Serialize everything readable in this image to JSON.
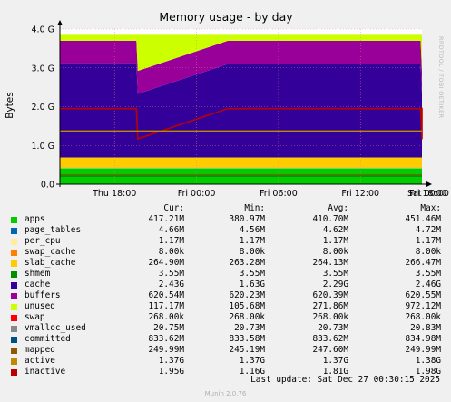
{
  "chart_data": {
    "type": "area",
    "title": "Memory usage - by day",
    "ylabel": "Bytes",
    "side_label": "RRDTOOL / TOBI OETIKER",
    "ylim": [
      0,
      4.0
    ],
    "y_unit": "GB",
    "y_ticks": [
      {
        "value": 0,
        "label": "0.0"
      },
      {
        "value": 1,
        "label": "1.0 G"
      },
      {
        "value": 2,
        "label": "2.0 G"
      },
      {
        "value": 3,
        "label": "3.0 G"
      },
      {
        "value": 4,
        "label": "4.0 G"
      }
    ],
    "x_range": [
      "Dec 26 14:00",
      "Dec 27 00:30"
    ],
    "x_range_hours": [
      0,
      26.5
    ],
    "x_ticks": [
      {
        "hour": 4,
        "label": "Thu 18:00"
      },
      {
        "hour": 10,
        "label": "Fri 00:00"
      },
      {
        "hour": 16,
        "label": "Fri 06:00"
      },
      {
        "hour": 22,
        "label": "Fri 12:00"
      },
      {
        "hour": 28,
        "label": "Fri 18:00"
      },
      {
        "hour": 34,
        "label": "Sat 00:00"
      }
    ],
    "grid": true,
    "columns": [
      "Cur:",
      "Min:",
      "Avg:",
      "Max:"
    ],
    "series": [
      {
        "name": "apps",
        "color": "#00cc00",
        "cur": "417.21M",
        "min": "380.97M",
        "avg": "410.70M",
        "max": "451.46M"
      },
      {
        "name": "page_tables",
        "color": "#0066b3",
        "cur": "4.66M",
        "min": "4.56M",
        "avg": "4.62M",
        "max": "4.72M"
      },
      {
        "name": "per_cpu",
        "color": "#ffee99",
        "cur": "1.17M",
        "min": "1.17M",
        "avg": "1.17M",
        "max": "1.17M"
      },
      {
        "name": "swap_cache",
        "color": "#ff8000",
        "cur": "8.00k",
        "min": "8.00k",
        "avg": "8.00k",
        "max": "8.00k"
      },
      {
        "name": "slab_cache",
        "color": "#ffcc00",
        "cur": "264.90M",
        "min": "263.28M",
        "avg": "264.13M",
        "max": "266.47M"
      },
      {
        "name": "shmem",
        "color": "#008f00",
        "cur": "3.55M",
        "min": "3.55M",
        "avg": "3.55M",
        "max": "3.55M"
      },
      {
        "name": "cache",
        "color": "#330099",
        "cur": "2.43G",
        "min": "1.63G",
        "avg": "2.29G",
        "max": "2.46G"
      },
      {
        "name": "buffers",
        "color": "#990099",
        "cur": "620.54M",
        "min": "620.23M",
        "avg": "620.39M",
        "max": "620.55M"
      },
      {
        "name": "unused",
        "color": "#ccff00",
        "cur": "117.17M",
        "min": "105.68M",
        "avg": "271.86M",
        "max": "972.12M"
      },
      {
        "name": "swap",
        "color": "#ff0000",
        "cur": "268.00k",
        "min": "268.00k",
        "avg": "268.00k",
        "max": "268.00k"
      },
      {
        "name": "vmalloc_used",
        "color": "#888888",
        "cur": "20.75M",
        "min": "20.73M",
        "avg": "20.73M",
        "max": "20.83M"
      },
      {
        "name": "committed",
        "color": "#005082",
        "cur": "833.62M",
        "min": "833.58M",
        "avg": "833.62M",
        "max": "834.98M"
      },
      {
        "name": "mapped",
        "color": "#8c5800",
        "cur": "249.99M",
        "min": "245.19M",
        "avg": "247.60M",
        "max": "249.99M"
      },
      {
        "name": "active",
        "color": "#c08a00",
        "cur": "1.37G",
        "min": "1.37G",
        "avg": "1.37G",
        "max": "1.38G"
      },
      {
        "name": "inactive",
        "color": "#bb0000",
        "cur": "1.95G",
        "min": "1.16G",
        "avg": "1.81G",
        "max": "1.98G"
      }
    ],
    "stack_profile_gb": {
      "hours": [
        0,
        5.6,
        5.7,
        12.3,
        26.4,
        26.5,
        31.0,
        36.5
      ],
      "cache_top": [
        3.12,
        3.12,
        2.33,
        3.1,
        3.1,
        2.34,
        2.9,
        3.13
      ],
      "buffers_top": [
        3.7,
        3.7,
        2.92,
        3.7,
        3.7,
        2.92,
        3.5,
        3.73
      ],
      "inactive": [
        1.95,
        1.95,
        1.17,
        1.95,
        1.95,
        1.16,
        1.75,
        1.97
      ]
    }
  },
  "footer": {
    "last_update": "Last update: Sat Dec 27 00:30:15 2025",
    "version": "Munin 2.0.76"
  }
}
